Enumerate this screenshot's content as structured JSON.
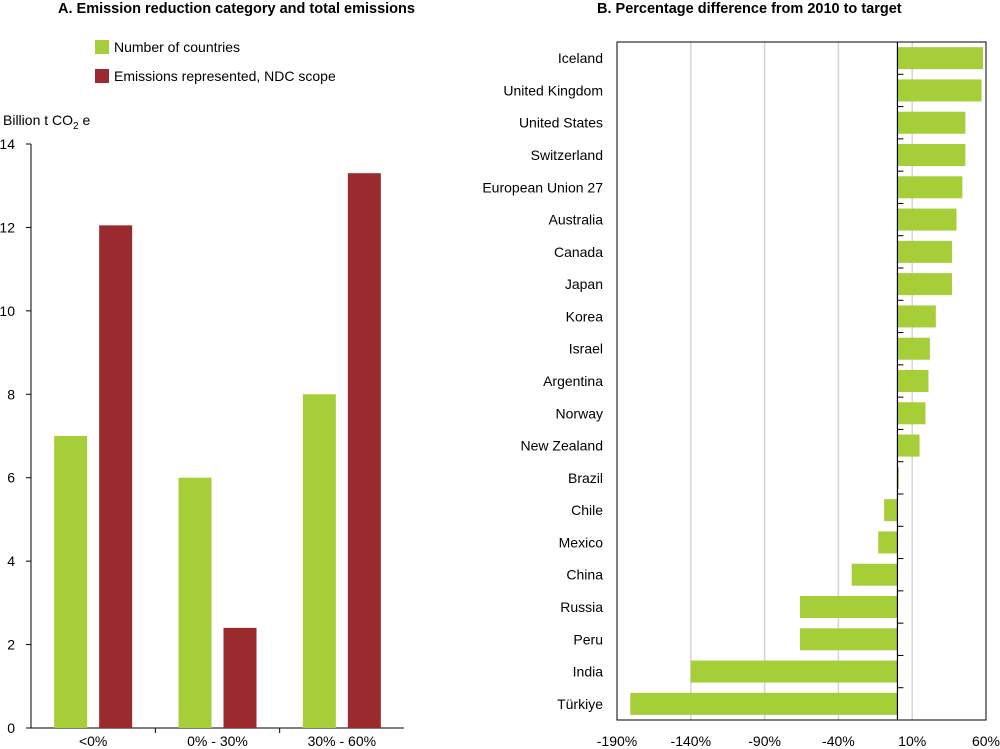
{
  "colors": {
    "green": "#a6ce39",
    "red": "#9b2a2f",
    "grid": "#d4d4d4",
    "axis": "#000000"
  },
  "chart_data": [
    {
      "type": "bar",
      "title": "A. Emission reduction category and total emissions",
      "ylabel": "Billion t CO2 e",
      "ylabel_main": "Billion t CO",
      "ylabel_sub": "2",
      "ylabel_tail": " e",
      "categories": [
        "<0%",
        "0% - 30%",
        "30% - 60%"
      ],
      "series": [
        {
          "name": "Number of countries",
          "color": "#a6ce39",
          "values": [
            7,
            6,
            8
          ]
        },
        {
          "name": "Emissions represented, NDC scope",
          "color": "#9b2a2f",
          "values": [
            12.05,
            2.4,
            13.3
          ]
        }
      ],
      "ylim": [
        0,
        14
      ],
      "yticks": [
        0,
        2,
        4,
        6,
        8,
        10,
        12,
        14
      ],
      "legend": "top",
      "grid": false
    },
    {
      "type": "bar",
      "orientation": "horizontal",
      "title": "B. Percentage difference from 2010 to target",
      "categories": [
        "Iceland",
        "United Kingdom",
        "United States",
        "Switzerland",
        "European Union 27",
        "Australia",
        "Canada",
        "Japan",
        "Korea",
        "Israel",
        "Argentina",
        "Norway",
        "New Zealand",
        "Brazil",
        "Chile",
        "Mexico",
        "China",
        "Russia",
        "Peru",
        "India",
        "Türkiye"
      ],
      "values": [
        58,
        57,
        46,
        46,
        44,
        40,
        37,
        37,
        26,
        22,
        21,
        19,
        15,
        1,
        -9,
        -13,
        -31,
        -66,
        -66,
        -140,
        -181
      ],
      "color": "#a6ce39",
      "xlim": [
        -190,
        60
      ],
      "xticks": [
        -190,
        -140,
        -90,
        -40,
        10,
        60
      ],
      "xtick_labels": [
        "-190%",
        "-140%",
        "-90%",
        "-40%",
        "10%",
        "60%"
      ],
      "grid": true
    }
  ]
}
